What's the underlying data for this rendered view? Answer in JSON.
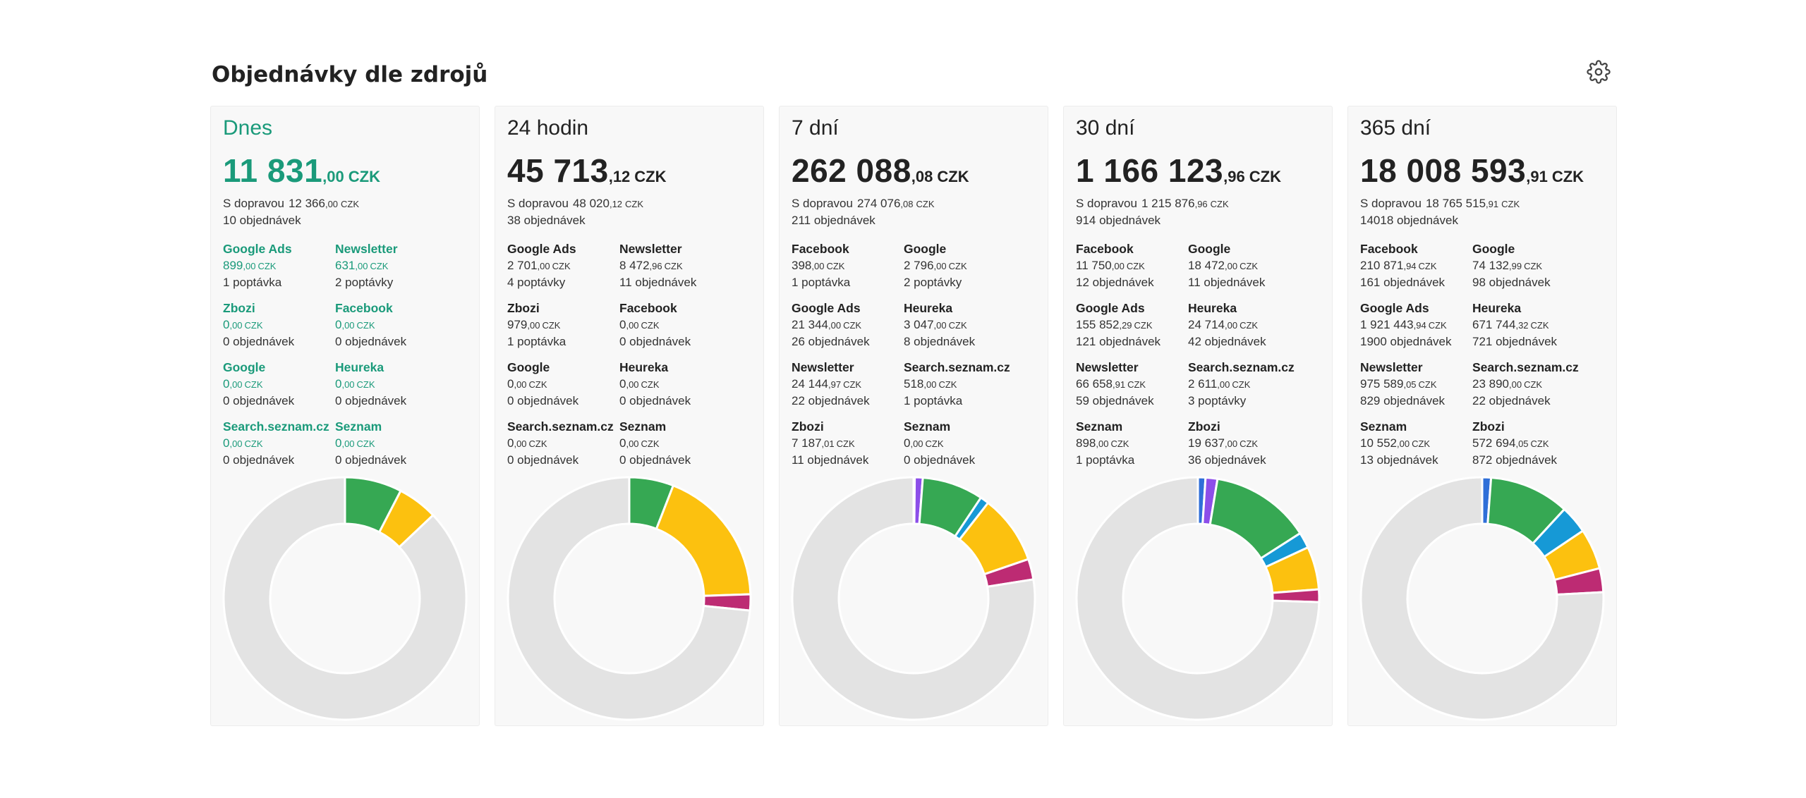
{
  "title": "Objednávky dle zdrojů",
  "settings_icon": "gear-icon",
  "colors": {
    "accent": "#1a9a7a",
    "rest": "#e3e3e3",
    "blue": "#2f6fd8",
    "purple": "#8c4ee9",
    "green": "#36a853",
    "cyan": "#1699d6",
    "yellow": "#fcc10f",
    "magenta": "#bd2b73"
  },
  "cards": [
    {
      "period": "Dnes",
      "active": true,
      "total_int": "11 831",
      "total_dec": ",00",
      "currency": "CZK",
      "shipping_label": "S dopravou",
      "shipping_int": "12 366",
      "shipping_dec": ",00",
      "orders": "10 objednávek",
      "sources": [
        {
          "name": "Google Ads",
          "int": "899",
          "dec": ",00",
          "cur": "CZK",
          "count": "1 poptávka"
        },
        {
          "name": "Newsletter",
          "int": "631",
          "dec": ",00",
          "cur": "CZK",
          "count": "2 poptávky"
        },
        {
          "name": "Zbozi",
          "int": "0",
          "dec": ",00",
          "cur": "CZK",
          "count": "0 objednávek"
        },
        {
          "name": "Facebook",
          "int": "0",
          "dec": ",00",
          "cur": "CZK",
          "count": "0 objednávek"
        },
        {
          "name": "Google",
          "int": "0",
          "dec": ",00",
          "cur": "CZK",
          "count": "0 objednávek"
        },
        {
          "name": "Heureka",
          "int": "0",
          "dec": ",00",
          "cur": "CZK",
          "count": "0 objednávek"
        },
        {
          "name": "Search.seznam.cz",
          "int": "0",
          "dec": ",00",
          "cur": "CZK",
          "count": "0 objednávek"
        },
        {
          "name": "Seznam",
          "int": "0",
          "dec": ",00",
          "cur": "CZK",
          "count": "0 objednávek"
        }
      ],
      "donut": [
        {
          "color": "green",
          "value": 899
        },
        {
          "color": "yellow",
          "value": 631
        },
        {
          "color": "rest",
          "value": 10301
        }
      ]
    },
    {
      "period": "24 hodin",
      "active": false,
      "total_int": "45 713",
      "total_dec": ",12",
      "currency": "CZK",
      "shipping_label": "S dopravou",
      "shipping_int": "48 020",
      "shipping_dec": ",12",
      "orders": "38 objednávek",
      "sources": [
        {
          "name": "Google Ads",
          "int": "2 701",
          "dec": ",00",
          "cur": "CZK",
          "count": "4 poptávky"
        },
        {
          "name": "Newsletter",
          "int": "8 472",
          "dec": ",96",
          "cur": "CZK",
          "count": "11 objednávek"
        },
        {
          "name": "Zbozi",
          "int": "979",
          "dec": ",00",
          "cur": "CZK",
          "count": "1 poptávka"
        },
        {
          "name": "Facebook",
          "int": "0",
          "dec": ",00",
          "cur": "CZK",
          "count": "0 objednávek"
        },
        {
          "name": "Google",
          "int": "0",
          "dec": ",00",
          "cur": "CZK",
          "count": "0 objednávek"
        },
        {
          "name": "Heureka",
          "int": "0",
          "dec": ",00",
          "cur": "CZK",
          "count": "0 objednávek"
        },
        {
          "name": "Search.seznam.cz",
          "int": "0",
          "dec": ",00",
          "cur": "CZK",
          "count": "0 objednávek"
        },
        {
          "name": "Seznam",
          "int": "0",
          "dec": ",00",
          "cur": "CZK",
          "count": "0 objednávek"
        }
      ],
      "donut": [
        {
          "color": "green",
          "value": 2701
        },
        {
          "color": "yellow",
          "value": 8473
        },
        {
          "color": "magenta",
          "value": 979
        },
        {
          "color": "rest",
          "value": 33560
        }
      ]
    },
    {
      "period": "7 dní",
      "active": false,
      "total_int": "262 088",
      "total_dec": ",08",
      "currency": "CZK",
      "shipping_label": "S dopravou",
      "shipping_int": "274 076",
      "shipping_dec": ",08",
      "orders": "211 objednávek",
      "sources": [
        {
          "name": "Facebook",
          "int": "398",
          "dec": ",00",
          "cur": "CZK",
          "count": "1 poptávka"
        },
        {
          "name": "Google",
          "int": "2 796",
          "dec": ",00",
          "cur": "CZK",
          "count": "2 poptávky"
        },
        {
          "name": "Google Ads",
          "int": "21 344",
          "dec": ",00",
          "cur": "CZK",
          "count": "26 objednávek"
        },
        {
          "name": "Heureka",
          "int": "3 047",
          "dec": ",00",
          "cur": "CZK",
          "count": "8 objednávek"
        },
        {
          "name": "Newsletter",
          "int": "24 144",
          "dec": ",97",
          "cur": "CZK",
          "count": "22 objednávek"
        },
        {
          "name": "Search.seznam.cz",
          "int": "518",
          "dec": ",00",
          "cur": "CZK",
          "count": "1 poptávka"
        },
        {
          "name": "Zbozi",
          "int": "7 187",
          "dec": ",01",
          "cur": "CZK",
          "count": "11 objednávek"
        },
        {
          "name": "Seznam",
          "int": "0",
          "dec": ",00",
          "cur": "CZK",
          "count": "0 objednávek"
        }
      ],
      "donut": [
        {
          "color": "blue",
          "value": 398
        },
        {
          "color": "purple",
          "value": 2796
        },
        {
          "color": "green",
          "value": 21344
        },
        {
          "color": "cyan",
          "value": 3047
        },
        {
          "color": "yellow",
          "value": 24145
        },
        {
          "color": "magenta",
          "value": 7187
        },
        {
          "color": "rest",
          "value": 203171
        }
      ]
    },
    {
      "period": "30 dní",
      "active": false,
      "total_int": "1 166 123",
      "total_dec": ",96",
      "currency": "CZK",
      "shipping_label": "S dopravou",
      "shipping_int": "1 215 876",
      "shipping_dec": ",96",
      "orders": "914 objednávek",
      "sources": [
        {
          "name": "Facebook",
          "int": "11 750",
          "dec": ",00",
          "cur": "CZK",
          "count": "12 objednávek"
        },
        {
          "name": "Google",
          "int": "18 472",
          "dec": ",00",
          "cur": "CZK",
          "count": "11 objednávek"
        },
        {
          "name": "Google Ads",
          "int": "155 852",
          "dec": ",29",
          "cur": "CZK",
          "count": "121 objednávek"
        },
        {
          "name": "Heureka",
          "int": "24 714",
          "dec": ",00",
          "cur": "CZK",
          "count": "42 objednávek"
        },
        {
          "name": "Newsletter",
          "int": "66 658",
          "dec": ",91",
          "cur": "CZK",
          "count": "59 objednávek"
        },
        {
          "name": "Search.seznam.cz",
          "int": "2 611",
          "dec": ",00",
          "cur": "CZK",
          "count": "3 poptávky"
        },
        {
          "name": "Seznam",
          "int": "898",
          "dec": ",00",
          "cur": "CZK",
          "count": "1 poptávka"
        },
        {
          "name": "Zbozi",
          "int": "19 637",
          "dec": ",00",
          "cur": "CZK",
          "count": "36 objednávek"
        }
      ],
      "donut": [
        {
          "color": "blue",
          "value": 11750
        },
        {
          "color": "purple",
          "value": 18472
        },
        {
          "color": "green",
          "value": 155852
        },
        {
          "color": "cyan",
          "value": 24714
        },
        {
          "color": "yellow",
          "value": 66659
        },
        {
          "color": "magenta",
          "value": 19637
        },
        {
          "color": "rest",
          "value": 869039
        }
      ]
    },
    {
      "period": "365 dní",
      "active": false,
      "total_int": "18 008 593",
      "total_dec": ",91",
      "currency": "CZK",
      "shipping_label": "S dopravou",
      "shipping_int": "18 765 515",
      "shipping_dec": ",91",
      "orders": "14018 objednávek",
      "sources": [
        {
          "name": "Facebook",
          "int": "210 871",
          "dec": ",94",
          "cur": "CZK",
          "count": "161 objednávek"
        },
        {
          "name": "Google",
          "int": "74 132",
          "dec": ",99",
          "cur": "CZK",
          "count": "98 objednávek"
        },
        {
          "name": "Google Ads",
          "int": "1 921 443",
          "dec": ",94",
          "cur": "CZK",
          "count": "1900 objednávek"
        },
        {
          "name": "Heureka",
          "int": "671 744",
          "dec": ",32",
          "cur": "CZK",
          "count": "721 objednávek"
        },
        {
          "name": "Newsletter",
          "int": "975 589",
          "dec": ",05",
          "cur": "CZK",
          "count": "829 objednávek"
        },
        {
          "name": "Search.seznam.cz",
          "int": "23 890",
          "dec": ",00",
          "cur": "CZK",
          "count": "22 objednávek"
        },
        {
          "name": "Seznam",
          "int": "10 552",
          "dec": ",00",
          "cur": "CZK",
          "count": "13 objednávek"
        },
        {
          "name": "Zbozi",
          "int": "572 694",
          "dec": ",05",
          "cur": "CZK",
          "count": "872 objednávek"
        }
      ],
      "donut": [
        {
          "color": "blue",
          "value": 210872
        },
        {
          "color": "green",
          "value": 1921444
        },
        {
          "color": "cyan",
          "value": 671744
        },
        {
          "color": "yellow",
          "value": 975589
        },
        {
          "color": "magenta",
          "value": 572694
        },
        {
          "color": "rest",
          "value": 13656250
        }
      ]
    }
  ]
}
